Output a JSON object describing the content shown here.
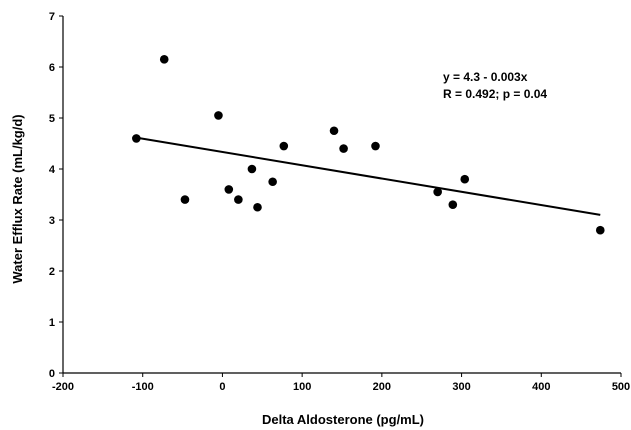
{
  "chart_data": {
    "type": "scatter",
    "xlabel": "Delta Aldosterone (pg/mL)",
    "ylabel": "Water Efflux Rate (mL/kg/d)",
    "xlim": [
      -200,
      500
    ],
    "ylim": [
      0,
      7
    ],
    "x_ticks": [
      -200,
      -100,
      0,
      100,
      200,
      300,
      400,
      500
    ],
    "y_ticks": [
      0,
      1,
      2,
      3,
      4,
      5,
      6,
      7
    ],
    "grid": false,
    "legend": "none",
    "points": [
      {
        "x": -108,
        "y": 4.6
      },
      {
        "x": -73,
        "y": 6.15
      },
      {
        "x": -47,
        "y": 3.4
      },
      {
        "x": -5,
        "y": 5.05
      },
      {
        "x": 8,
        "y": 3.6
      },
      {
        "x": 20,
        "y": 3.4
      },
      {
        "x": 37,
        "y": 4.0
      },
      {
        "x": 44,
        "y": 3.25
      },
      {
        "x": 63,
        "y": 3.75
      },
      {
        "x": 77,
        "y": 4.45
      },
      {
        "x": 140,
        "y": 4.75
      },
      {
        "x": 152,
        "y": 4.4
      },
      {
        "x": 192,
        "y": 4.45
      },
      {
        "x": 270,
        "y": 3.55
      },
      {
        "x": 289,
        "y": 3.3
      },
      {
        "x": 304,
        "y": 3.8
      },
      {
        "x": 474,
        "y": 2.8
      }
    ],
    "fit_line": {
      "x": [
        -110,
        474
      ],
      "y": [
        4.62,
        3.1
      ]
    },
    "annotations": [
      "y = 4.3 - 0.003x",
      "R = 0.492; p = 0.04"
    ],
    "colors": {
      "point": "#000000",
      "line": "#000000"
    }
  }
}
